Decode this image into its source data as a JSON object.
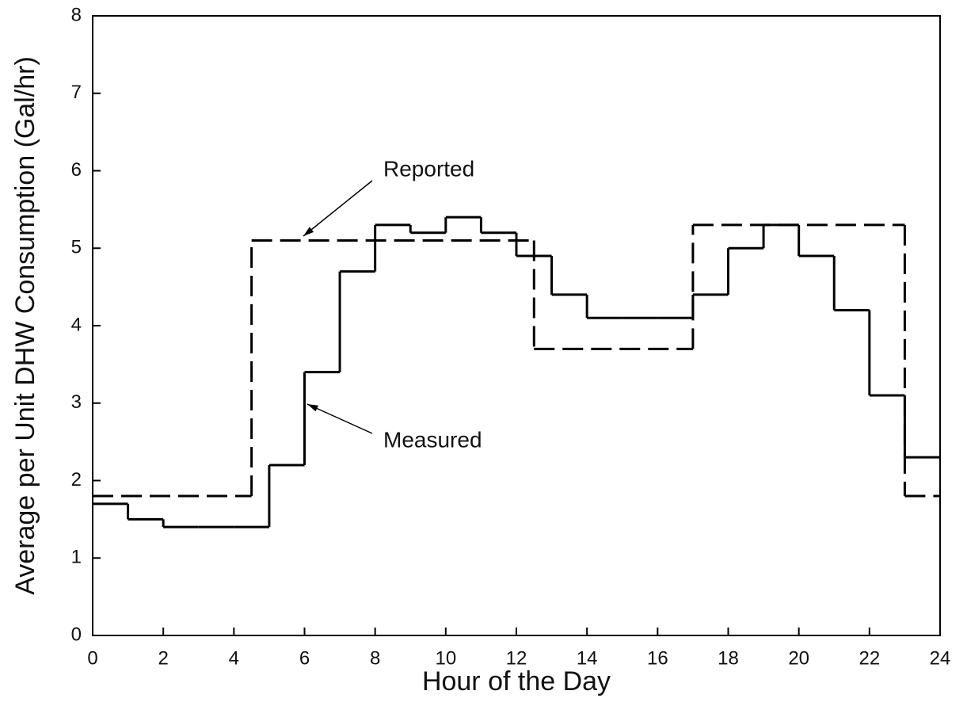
{
  "chart_data": {
    "type": "step",
    "x_label": "Hour of the Day",
    "y_label": "Average per Unit DHW Consumption (Gal/hr)",
    "xlim": [
      0,
      24
    ],
    "xticks": [
      0,
      2,
      4,
      6,
      8,
      10,
      12,
      14,
      16,
      18,
      20,
      22,
      24
    ],
    "ylim": [
      0,
      8
    ],
    "yticks": [
      0,
      1,
      2,
      3,
      4,
      5,
      6,
      7,
      8
    ],
    "series": [
      {
        "name": "Reported",
        "color": "#000000",
        "line_style": "dashed",
        "bins": [
          0,
          4.5,
          12.5,
          17,
          23,
          24
        ],
        "values": [
          1.8,
          5.1,
          3.7,
          5.3,
          1.8
        ]
      },
      {
        "name": "Measured",
        "color": "#000000",
        "line_style": "solid",
        "bins": [
          0,
          1,
          2,
          3,
          4,
          5,
          6,
          7,
          8,
          9,
          10,
          11,
          12,
          13,
          14,
          15,
          16,
          17,
          18,
          19,
          20,
          21,
          22,
          23,
          24
        ],
        "values": [
          1.7,
          1.5,
          1.4,
          1.4,
          1.4,
          2.2,
          3.4,
          4.7,
          5.3,
          5.2,
          5.4,
          5.2,
          4.9,
          4.4,
          4.1,
          4.1,
          4.1,
          4.4,
          5.0,
          5.3,
          4.9,
          4.2,
          3.1,
          2.3
        ]
      }
    ]
  }
}
